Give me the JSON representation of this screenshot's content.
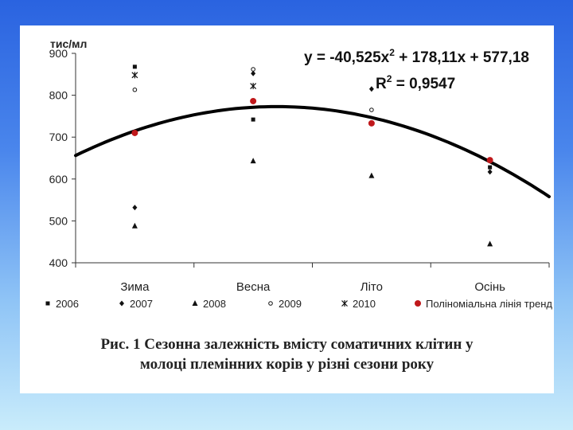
{
  "chart_data": {
    "type": "scatter",
    "ylabel": "тис/мл",
    "ylim": [
      400,
      900
    ],
    "yticks": [
      400,
      500,
      600,
      700,
      800,
      900
    ],
    "categories": [
      "Зима",
      "Весна",
      "Літо",
      "Осінь"
    ],
    "series": [
      {
        "name": "2006",
        "marker": "square",
        "values": [
          868,
          742,
          null,
          628
        ]
      },
      {
        "name": "2007",
        "marker": "diamond",
        "values": [
          532,
          852,
          815,
          617
        ]
      },
      {
        "name": "2008",
        "marker": "triangle",
        "values": [
          488,
          643,
          608,
          445
        ]
      },
      {
        "name": "2009",
        "marker": "circle-open",
        "values": [
          813,
          862,
          765,
          null
        ]
      },
      {
        "name": "2010",
        "marker": "star",
        "values": [
          848,
          822,
          null,
          null
        ]
      },
      {
        "name": "Поліноміальна лінія тренд",
        "marker": "dot-red",
        "values": [
          710,
          786,
          733,
          645
        ]
      }
    ],
    "trendline": {
      "type": "polynomial",
      "coefficients": [
        -40.525,
        178.11,
        577.18
      ],
      "equation_prefix": "y = -40,525x",
      "equation_exp": "2",
      "equation_suffix": " + 178,11x + 577,18",
      "r2_prefix": "R",
      "r2_exp": "2",
      "r2_suffix": " = 0,9547"
    },
    "legend_position": "bottom",
    "grid": false
  },
  "caption": {
    "line1": "Рис. 1  Сезонна залежність вмісту соматичних клітин у",
    "line2": "молоці племінних корів у різні сезони року"
  },
  "colors": {
    "marker": "#111111",
    "trend_dot": "#c0181b",
    "axis": "#333333"
  }
}
